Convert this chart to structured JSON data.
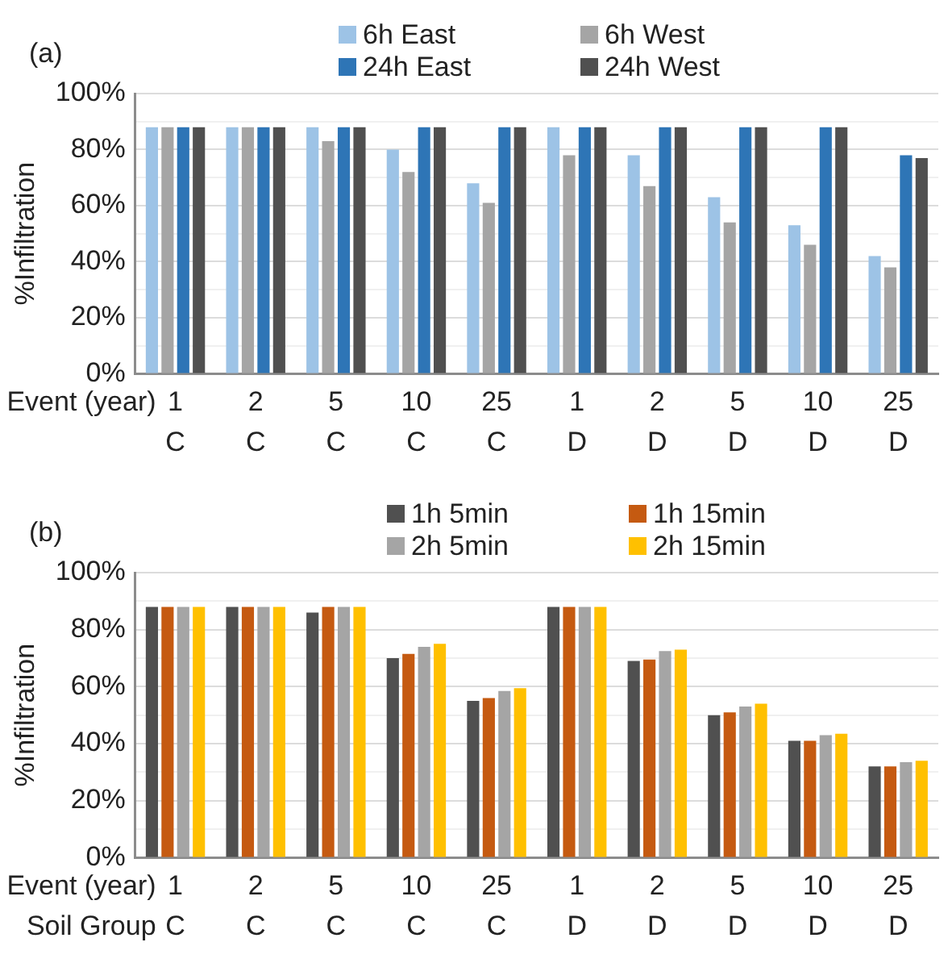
{
  "chart_data": [
    {
      "type": "bar",
      "annotations": [
        "(a)"
      ],
      "ylabel": "%Infiltration",
      "xlabel": "Event (year)",
      "categories": [
        "1\nC",
        "2\nC",
        "5\nC",
        "10\nC",
        "25\nC",
        "1\nD",
        "2\nD",
        "5\nD",
        "10\nD",
        "25\nD"
      ],
      "series": [
        {
          "name": "6h East",
          "color": "#9dc3e6",
          "values": [
            88,
            88,
            88,
            80,
            68,
            88,
            78,
            63,
            53,
            42
          ]
        },
        {
          "name": "6h West",
          "color": "#a5a5a5",
          "values": [
            88,
            88,
            83,
            72,
            61,
            78,
            67,
            54,
            46,
            38
          ]
        },
        {
          "name": "24h East",
          "color": "#2e75b6",
          "values": [
            88,
            88,
            88,
            88,
            88,
            88,
            88,
            88,
            88,
            78
          ]
        },
        {
          "name": "24h West",
          "color": "#505050",
          "values": [
            88,
            88,
            88,
            88,
            88,
            88,
            88,
            88,
            88,
            77
          ]
        }
      ],
      "ylim": [
        0,
        100
      ],
      "yticks": [
        {
          "value": 0,
          "label": "0%"
        },
        {
          "value": 10,
          "label": null
        },
        {
          "value": 20,
          "label": "20%"
        },
        {
          "value": 30,
          "label": null
        },
        {
          "value": 40,
          "label": "40%"
        },
        {
          "value": 50,
          "label": null
        },
        {
          "value": 60,
          "label": "60%"
        },
        {
          "value": 70,
          "label": null
        },
        {
          "value": 80,
          "label": "80%"
        },
        {
          "value": 90,
          "label": null
        },
        {
          "value": 100,
          "label": "100%"
        }
      ],
      "grid": "y",
      "legend": "top"
    },
    {
      "type": "bar",
      "annotations": [
        "(b)"
      ],
      "ylabel": "%Infiltration",
      "xlabel": "Event (year)\nSoil Group",
      "categories": [
        "1\nC",
        "2\nC",
        "5\nC",
        "10\nC",
        "25\nC",
        "1\nD",
        "2\nD",
        "5\nD",
        "10\nD",
        "25\nD"
      ],
      "series": [
        {
          "name": "1h 5min",
          "color": "#505050",
          "values": [
            88,
            88,
            86,
            70,
            55,
            88,
            69,
            50,
            41,
            32
          ]
        },
        {
          "name": "1h 15min",
          "color": "#c55a11",
          "values": [
            88,
            88,
            88,
            71.5,
            56,
            88,
            69.5,
            51,
            41,
            32
          ]
        },
        {
          "name": "2h 5min",
          "color": "#a5a5a5",
          "values": [
            88,
            88,
            88,
            74,
            58.5,
            88,
            72.5,
            53,
            43,
            33.5
          ]
        },
        {
          "name": "2h 15min",
          "color": "#ffc000",
          "values": [
            88,
            88,
            88,
            75,
            59.5,
            88,
            73,
            54,
            43.5,
            34
          ]
        }
      ],
      "ylim": [
        0,
        100
      ],
      "yticks": [
        {
          "value": 0,
          "label": "0%"
        },
        {
          "value": 10,
          "label": null
        },
        {
          "value": 20,
          "label": "20%"
        },
        {
          "value": 30,
          "label": null
        },
        {
          "value": 40,
          "label": "40%"
        },
        {
          "value": 50,
          "label": null
        },
        {
          "value": 60,
          "label": "60%"
        },
        {
          "value": 70,
          "label": null
        },
        {
          "value": 80,
          "label": "80%"
        },
        {
          "value": 90,
          "label": null
        },
        {
          "value": 100,
          "label": "100%"
        }
      ],
      "grid": "y",
      "legend": "top"
    }
  ]
}
